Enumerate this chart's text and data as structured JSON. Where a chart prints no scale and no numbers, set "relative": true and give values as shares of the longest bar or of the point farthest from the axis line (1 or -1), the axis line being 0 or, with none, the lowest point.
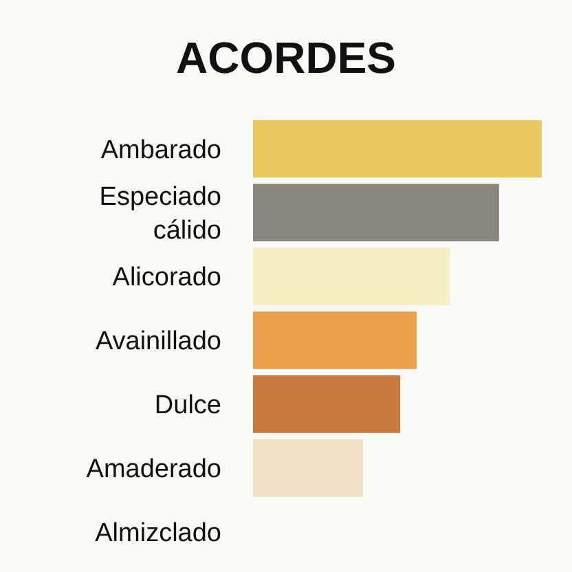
{
  "chart_data": {
    "type": "bar",
    "title": "ACORDES",
    "orientation": "horizontal",
    "relative": true,
    "categories": [
      "Ambarado",
      "Especiado\ncálido",
      "Alicorado",
      "Avainillado",
      "Dulce",
      "Amaderado",
      "Almizclado"
    ],
    "values": [
      1,
      0.852,
      0.681,
      0.567,
      0.51,
      0.381,
      null
    ],
    "colors": [
      "#e9c85e",
      "#8a857d",
      "#f6efc4",
      "#eba04b",
      "#c7793e",
      "#efe2c6",
      "#efe2c6"
    ],
    "grid": false,
    "legend": false
  }
}
